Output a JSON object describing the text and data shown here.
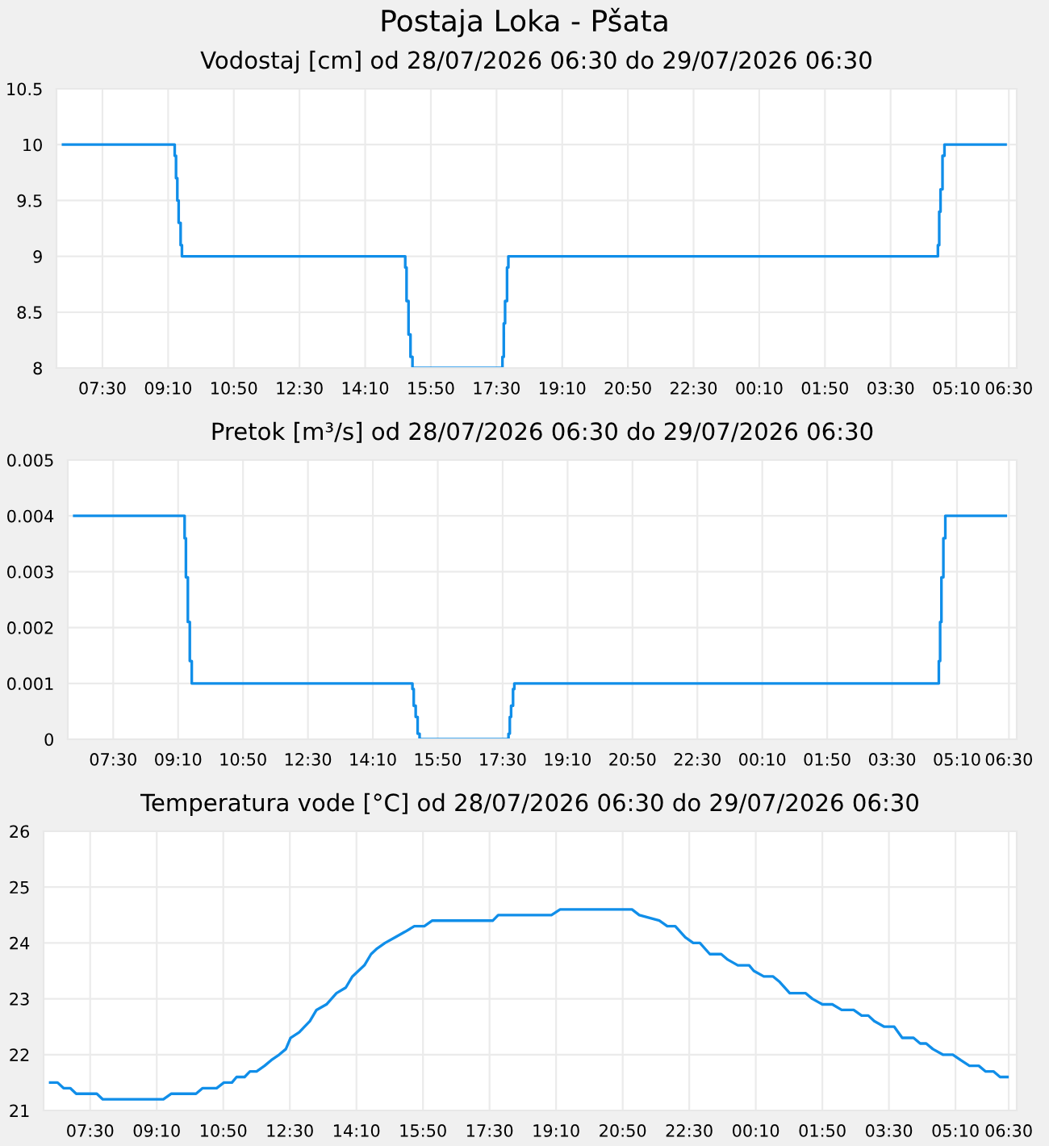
{
  "chart_data": [
    {
      "type": "step",
      "title": "Postaja Loka - Pšata",
      "subtitle": "Vodostaj [cm] od 28/07/2026 06:30 do 29/07/2026 06:30",
      "x": [
        "2026-07-28T06:30",
        "2026-07-28T09:20",
        "2026-07-28T09:22",
        "2026-07-28T09:24",
        "2026-07-28T09:26",
        "2026-07-28T09:29",
        "2026-07-28T09:31",
        "2026-07-28T15:11",
        "2026-07-28T15:13",
        "2026-07-28T15:16",
        "2026-07-28T15:19",
        "2026-07-28T15:22",
        "2026-07-28T17:39",
        "2026-07-28T17:41",
        "2026-07-28T17:43",
        "2026-07-28T17:46",
        "2026-07-28T17:48",
        "2026-07-29T04:42",
        "2026-07-29T04:44",
        "2026-07-29T04:46",
        "2026-07-29T04:49",
        "2026-07-29T04:52",
        "2026-07-29T06:25"
      ],
      "series": [
        {
          "color": "#108ee9",
          "values": [
            10,
            9.9,
            9.7,
            9.5,
            9.3,
            9.1,
            9.0,
            8.9,
            8.6,
            8.3,
            8.1,
            8.0,
            8.1,
            8.4,
            8.6,
            8.9,
            9.0,
            9.1,
            9.4,
            9.6,
            9.9,
            10,
            10
          ]
        }
      ],
      "xlim": [
        "2026-07-28T06:20",
        "2026-07-29T06:42"
      ],
      "xticks": [
        {
          "value": "2026-07-28T07:30",
          "label": "07:30"
        },
        {
          "value": "2026-07-28T09:10",
          "label": "09:10"
        },
        {
          "value": "2026-07-28T10:50",
          "label": "10:50"
        },
        {
          "value": "2026-07-28T12:30",
          "label": "12:30"
        },
        {
          "value": "2026-07-28T14:10",
          "label": "14:10"
        },
        {
          "value": "2026-07-28T15:50",
          "label": "15:50"
        },
        {
          "value": "2026-07-28T17:30",
          "label": "17:30"
        },
        {
          "value": "2026-07-28T19:10",
          "label": "19:10"
        },
        {
          "value": "2026-07-28T20:50",
          "label": "20:50"
        },
        {
          "value": "2026-07-28T22:30",
          "label": "22:30"
        },
        {
          "value": "2026-07-29T00:10",
          "label": "00:10"
        },
        {
          "value": "2026-07-29T01:50",
          "label": "01:50"
        },
        {
          "value": "2026-07-29T03:30",
          "label": "03:30"
        },
        {
          "value": "2026-07-29T05:10",
          "label": "05:10"
        },
        {
          "value": "2026-07-29T06:30",
          "label": "06:30"
        }
      ],
      "ylim": [
        8,
        10.5
      ],
      "yticks": [
        8,
        8.5,
        9,
        9.5,
        10,
        10.5
      ],
      "grid": true,
      "legend": false
    },
    {
      "type": "step",
      "subtitle": "Pretok [m³/s] od 28/07/2026 06:30 do 29/07/2026 06:30",
      "x": [
        "2026-07-28T06:30",
        "2026-07-28T09:20",
        "2026-07-28T09:22",
        "2026-07-28T09:25",
        "2026-07-28T09:28",
        "2026-07-28T09:31",
        "2026-07-28T15:11",
        "2026-07-28T15:13",
        "2026-07-28T15:16",
        "2026-07-28T15:19",
        "2026-07-28T15:22",
        "2026-07-28T17:39",
        "2026-07-28T17:41",
        "2026-07-28T17:43",
        "2026-07-28T17:46",
        "2026-07-28T17:48",
        "2026-07-29T04:42",
        "2026-07-29T04:44",
        "2026-07-29T04:46",
        "2026-07-29T04:49",
        "2026-07-29T04:52",
        "2026-07-29T06:25"
      ],
      "series": [
        {
          "color": "#108ee9",
          "values": [
            0.004,
            0.0036,
            0.0029,
            0.0021,
            0.0014,
            0.001,
            0.0009,
            0.0006,
            0.0004,
            0.0001,
            0,
            0.0001,
            0.0004,
            0.0006,
            0.0009,
            0.001,
            0.0014,
            0.0021,
            0.0029,
            0.0036,
            0.004,
            0.004
          ]
        }
      ],
      "xlim": [
        "2026-07-28T06:20",
        "2026-07-29T06:42"
      ],
      "xticks": [
        {
          "value": "2026-07-28T07:30",
          "label": "07:30"
        },
        {
          "value": "2026-07-28T09:10",
          "label": "09:10"
        },
        {
          "value": "2026-07-28T10:50",
          "label": "10:50"
        },
        {
          "value": "2026-07-28T12:30",
          "label": "12:30"
        },
        {
          "value": "2026-07-28T14:10",
          "label": "14:10"
        },
        {
          "value": "2026-07-28T15:50",
          "label": "15:50"
        },
        {
          "value": "2026-07-28T17:30",
          "label": "17:30"
        },
        {
          "value": "2026-07-28T19:10",
          "label": "19:10"
        },
        {
          "value": "2026-07-28T20:50",
          "label": "20:50"
        },
        {
          "value": "2026-07-28T22:30",
          "label": "22:30"
        },
        {
          "value": "2026-07-29T00:10",
          "label": "00:10"
        },
        {
          "value": "2026-07-29T01:50",
          "label": "01:50"
        },
        {
          "value": "2026-07-29T03:30",
          "label": "03:30"
        },
        {
          "value": "2026-07-29T05:10",
          "label": "05:10"
        },
        {
          "value": "2026-07-29T06:30",
          "label": "06:30"
        }
      ],
      "ylim": [
        0,
        0.005
      ],
      "yticks": [
        0,
        0.001,
        0.002,
        0.003,
        0.004,
        0.005
      ],
      "grid": true,
      "legend": false
    },
    {
      "type": "line",
      "subtitle": "Temperatura vode [°C] od 28/07/2026 06:30 do 29/07/2026 06:30",
      "x": [
        "2026-07-28T06:30",
        "2026-07-28T06:41",
        "2026-07-28T06:50",
        "2026-07-28T07:00",
        "2026-07-28T07:09",
        "2026-07-28T07:40",
        "2026-07-28T07:49",
        "2026-07-28T09:20",
        "2026-07-28T09:32",
        "2026-07-28T10:09",
        "2026-07-28T10:19",
        "2026-07-28T10:40",
        "2026-07-28T10:51",
        "2026-07-28T11:03",
        "2026-07-28T11:10",
        "2026-07-28T11:22",
        "2026-07-28T11:30",
        "2026-07-28T11:40",
        "2026-07-28T11:52",
        "2026-07-28T12:02",
        "2026-07-28T12:14",
        "2026-07-28T12:24",
        "2026-07-28T12:31",
        "2026-07-28T12:44",
        "2026-07-28T13:00",
        "2026-07-28T13:10",
        "2026-07-28T13:25",
        "2026-07-28T13:40",
        "2026-07-28T13:54",
        "2026-07-28T14:04",
        "2026-07-28T14:22",
        "2026-07-28T14:32",
        "2026-07-28T14:41",
        "2026-07-28T14:53",
        "2026-07-28T15:08",
        "2026-07-28T15:23",
        "2026-07-28T15:37",
        "2026-07-28T15:52",
        "2026-07-28T16:04",
        "2026-07-28T17:35",
        "2026-07-28T17:43",
        "2026-07-28T19:03",
        "2026-07-28T19:16",
        "2026-07-28T21:04",
        "2026-07-28T21:15",
        "2026-07-28T21:45",
        "2026-07-28T21:57",
        "2026-07-28T22:09",
        "2026-07-28T22:24",
        "2026-07-28T22:36",
        "2026-07-28T22:46",
        "2026-07-28T23:01",
        "2026-07-28T23:18",
        "2026-07-28T23:28",
        "2026-07-28T23:43",
        "2026-07-29T00:00",
        "2026-07-29T00:07",
        "2026-07-29T00:22",
        "2026-07-29T00:36",
        "2026-07-29T00:46",
        "2026-07-29T01:01",
        "2026-07-29T01:25",
        "2026-07-29T01:35",
        "2026-07-29T01:50",
        "2026-07-29T02:05",
        "2026-07-29T02:19",
        "2026-07-29T02:37",
        "2026-07-29T02:49",
        "2026-07-29T02:59",
        "2026-07-29T03:08",
        "2026-07-29T03:23",
        "2026-07-29T03:38",
        "2026-07-29T03:50",
        "2026-07-29T04:07",
        "2026-07-29T04:17",
        "2026-07-29T04:26",
        "2026-07-29T04:36",
        "2026-07-29T04:51",
        "2026-07-29T05:06",
        "2026-07-29T05:18",
        "2026-07-29T05:31",
        "2026-07-29T05:45",
        "2026-07-29T05:55",
        "2026-07-29T06:07",
        "2026-07-29T06:17",
        "2026-07-29T06:28"
      ],
      "series": [
        {
          "color": "#108ee9",
          "values": [
            21.5,
            21.5,
            21.4,
            21.4,
            21.3,
            21.3,
            21.2,
            21.2,
            21.3,
            21.3,
            21.4,
            21.4,
            21.5,
            21.5,
            21.6,
            21.6,
            21.7,
            21.7,
            21.8,
            21.9,
            22.0,
            22.1,
            22.3,
            22.4,
            22.6,
            22.8,
            22.9,
            23.1,
            23.2,
            23.4,
            23.6,
            23.8,
            23.9,
            24.0,
            24.1,
            24.2,
            24.3,
            24.3,
            24.4,
            24.4,
            24.5,
            24.5,
            24.6,
            24.6,
            24.5,
            24.4,
            24.3,
            24.3,
            24.1,
            24.0,
            24.0,
            23.8,
            23.8,
            23.7,
            23.6,
            23.6,
            23.5,
            23.4,
            23.4,
            23.3,
            23.1,
            23.1,
            23.0,
            22.9,
            22.9,
            22.8,
            22.8,
            22.7,
            22.7,
            22.6,
            22.5,
            22.5,
            22.3,
            22.3,
            22.2,
            22.2,
            22.1,
            22.0,
            22.0,
            21.9,
            21.8,
            21.8,
            21.7,
            21.7,
            21.6,
            21.6
          ]
        }
      ],
      "xlim": [
        "2026-07-28T06:20",
        "2026-07-29T06:42"
      ],
      "xticks": [
        {
          "value": "2026-07-28T07:30",
          "label": "07:30"
        },
        {
          "value": "2026-07-28T09:10",
          "label": "09:10"
        },
        {
          "value": "2026-07-28T10:50",
          "label": "10:50"
        },
        {
          "value": "2026-07-28T12:30",
          "label": "12:30"
        },
        {
          "value": "2026-07-28T14:10",
          "label": "14:10"
        },
        {
          "value": "2026-07-28T15:50",
          "label": "15:50"
        },
        {
          "value": "2026-07-28T17:30",
          "label": "17:30"
        },
        {
          "value": "2026-07-28T19:10",
          "label": "19:10"
        },
        {
          "value": "2026-07-28T20:50",
          "label": "20:50"
        },
        {
          "value": "2026-07-28T22:30",
          "label": "22:30"
        },
        {
          "value": "2026-07-29T00:10",
          "label": "00:10"
        },
        {
          "value": "2026-07-29T01:50",
          "label": "01:50"
        },
        {
          "value": "2026-07-29T03:30",
          "label": "03:30"
        },
        {
          "value": "2026-07-29T05:10",
          "label": "05:10"
        },
        {
          "value": "2026-07-29T06:30",
          "label": "06:30"
        }
      ],
      "ylim": [
        21,
        26
      ],
      "yticks": [
        21,
        22,
        23,
        24,
        25,
        26
      ],
      "grid": true,
      "legend": false
    }
  ]
}
